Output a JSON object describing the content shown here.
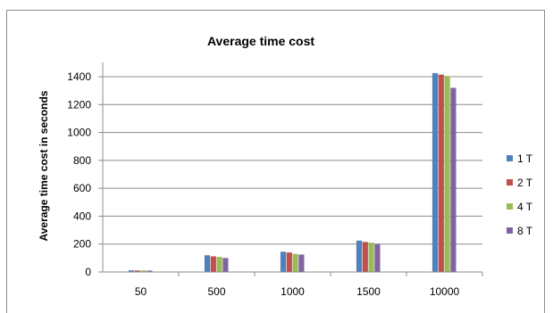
{
  "chart_data": {
    "type": "bar",
    "title": "Average time cost",
    "xlabel": "",
    "ylabel": "Average time cost in seconds",
    "categories": [
      "50",
      "500",
      "1000",
      "1500",
      "10000"
    ],
    "ylim": [
      0,
      1400
    ],
    "yticks": [
      0,
      200,
      400,
      600,
      800,
      1000,
      1200,
      1400
    ],
    "grid": true,
    "legend_position": "right",
    "series": [
      {
        "name": "1 T",
        "color": "#4f81bd",
        "values": [
          12,
          120,
          145,
          225,
          1425
        ]
      },
      {
        "name": "2 T",
        "color": "#c0504d",
        "values": [
          11,
          112,
          140,
          215,
          1415
        ]
      },
      {
        "name": "4 T",
        "color": "#9bbb59",
        "values": [
          11,
          108,
          130,
          210,
          1405
        ]
      },
      {
        "name": "8 T",
        "color": "#8064a2",
        "values": [
          10,
          100,
          125,
          200,
          1320
        ]
      }
    ]
  }
}
